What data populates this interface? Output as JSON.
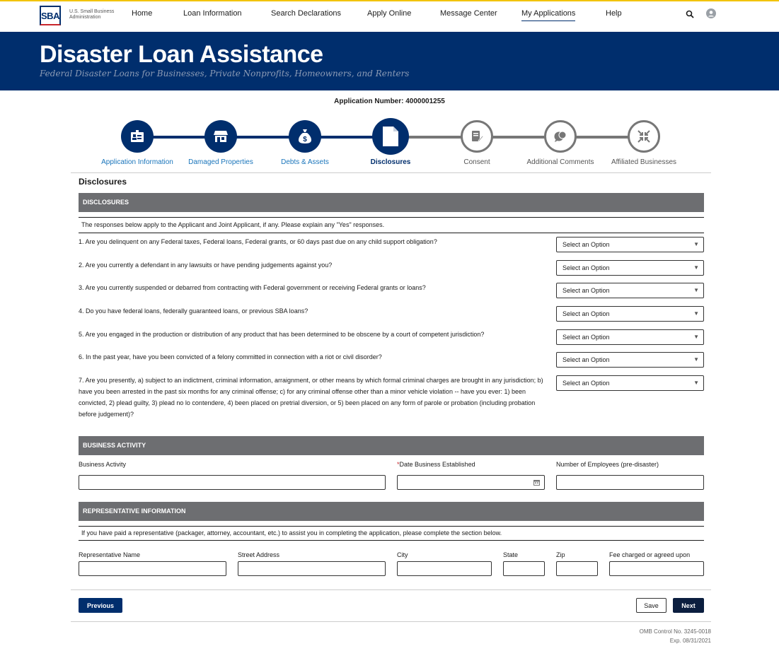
{
  "nav": {
    "logo_text": "SBA",
    "logo_sub": "U.S. Small Business Administration",
    "items": [
      "Home",
      "Loan Information",
      "Search Declarations",
      "Apply Online",
      "Message Center",
      "My Applications",
      "Help"
    ],
    "active": "My Applications"
  },
  "banner": {
    "title": "Disaster Loan Assistance",
    "subtitle": "Federal Disaster Loans for Businesses, Private Nonprofits, Homeowners, and Renters"
  },
  "application_number": "Application Number: 4000001255",
  "steps": [
    {
      "label": "Application Information",
      "status": "complete",
      "icon": "id-card-icon"
    },
    {
      "label": "Damaged Properties",
      "status": "complete",
      "icon": "storefront-icon"
    },
    {
      "label": "Debts & Assets",
      "status": "complete",
      "icon": "money-bag-icon"
    },
    {
      "label": "Disclosures",
      "status": "current",
      "icon": "document-icon"
    },
    {
      "label": "Consent",
      "status": "incomplete",
      "icon": "signature-icon"
    },
    {
      "label": "Additional Comments",
      "status": "incomplete",
      "icon": "chat-icon"
    },
    {
      "label": "Affiliated Businesses",
      "status": "incomplete",
      "icon": "compress-icon"
    }
  ],
  "page_title": "Disclosures",
  "disclosures": {
    "header": "DISCLOSURES",
    "intro": "The responses below apply to the Applicant and Joint Applicant, if any. Please explain any \"Yes\" responses.",
    "select_placeholder": "Select an Option",
    "questions": [
      "1. Are you delinquent on any Federal taxes, Federal loans, Federal grants, or 60 days past due on any child support obligation?",
      "2. Are you currently a defendant in any lawsuits or have pending judgements against you?",
      "3. Are you currently suspended or debarred from contracting with Federal government or receiving Federal grants or loans?",
      "4. Do you have federal loans, federally guaranteed loans, or previous SBA loans?",
      "5. Are you engaged in the production or distribution of any product that has been determined to be obscene by a court of competent jurisdiction?",
      "6. In the past year, have you been convicted of a felony committed in connection with a riot or civil disorder?",
      "7. Are you presently, a) subject to an indictment, criminal information, arraignment, or other means by which formal criminal charges are brought in any jurisdiction; b) have you been arrested in the past six months for any criminal offense; c) for any criminal offense other than a minor vehicle violation -- have you ever: 1) been convicted, 2) plead guilty, 3) plead no lo contendere, 4) been placed on pretrial diversion, or 5) been placed on any form of parole or probation (including probation before judgement)?"
    ]
  },
  "business": {
    "header": "BUSINESS ACTIVITY",
    "activity_label": "Business Activity",
    "date_required": "*",
    "date_label": "Date Business Established",
    "employees_label": "Number of Employees (pre-disaster)"
  },
  "representative": {
    "header": "REPRESENTATIVE INFORMATION",
    "intro": "If you have paid a representative (packager, attorney, accountant, etc.) to assist you in completing the application, please complete the section below.",
    "labels": [
      "Representative Name",
      "Street Address",
      "City",
      "State",
      "Zip",
      "Fee charged or agreed upon"
    ]
  },
  "buttons": {
    "previous": "Previous",
    "save": "Save",
    "next": "Next"
  },
  "footer": {
    "omb": "OMB Control No. 3245-0018",
    "exp": "Exp. 08/31/2021"
  },
  "colors": {
    "navy": "#002e6d",
    "section": "#6d6e71",
    "link": "#1a75bb",
    "accent": "#f2c300"
  }
}
